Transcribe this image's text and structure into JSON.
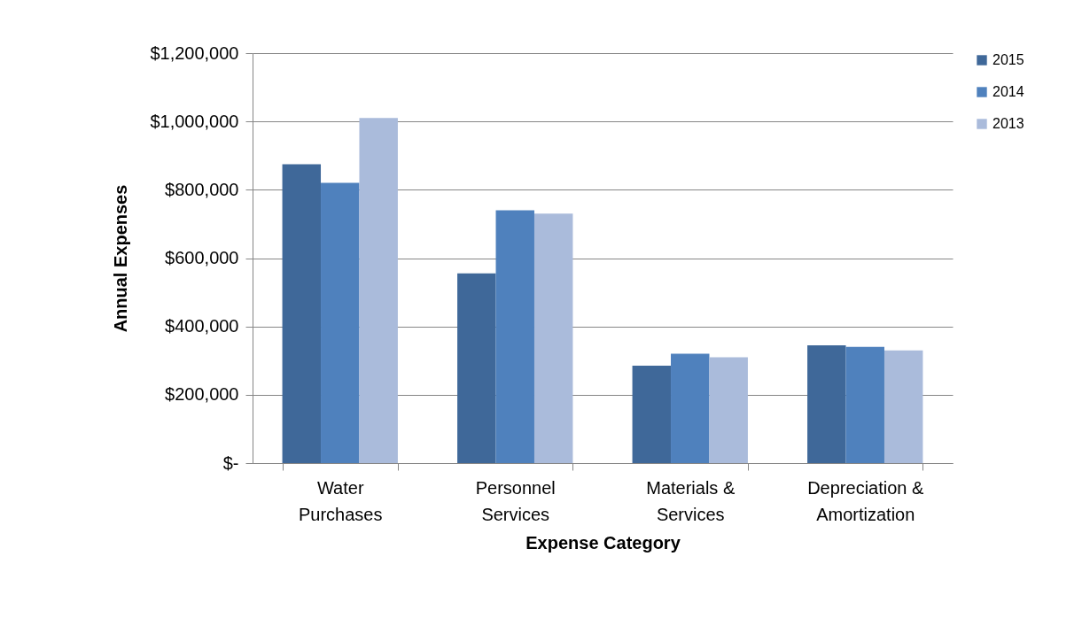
{
  "chart_data": {
    "type": "bar",
    "xlabel": "Expense Category",
    "ylabel": "Annual Expenses",
    "categories": [
      "Water Purchases",
      "Personnel Services",
      "Materials & Services",
      "Depreciation & Amortization"
    ],
    "series": [
      {
        "name": "2015",
        "color": "#3f6899",
        "values": [
          875000,
          555000,
          285000,
          345000
        ]
      },
      {
        "name": "2014",
        "color": "#4f81bd",
        "values": [
          820000,
          740000,
          320000,
          340000
        ]
      },
      {
        "name": "2013",
        "color": "#aabbdb",
        "values": [
          1010000,
          730000,
          310000,
          330000
        ]
      }
    ],
    "ylim": [
      0,
      1200000
    ],
    "yticks": [
      {
        "value": 0,
        "label": "$-"
      },
      {
        "value": 200000,
        "label": "$200,000"
      },
      {
        "value": 400000,
        "label": "$400,000"
      },
      {
        "value": 600000,
        "label": "$600,000"
      },
      {
        "value": 800000,
        "label": "$800,000"
      },
      {
        "value": 1000000,
        "label": "$1,000,000"
      },
      {
        "value": 1200000,
        "label": "$1,200,000"
      }
    ],
    "grid": "y",
    "legend": "right"
  }
}
